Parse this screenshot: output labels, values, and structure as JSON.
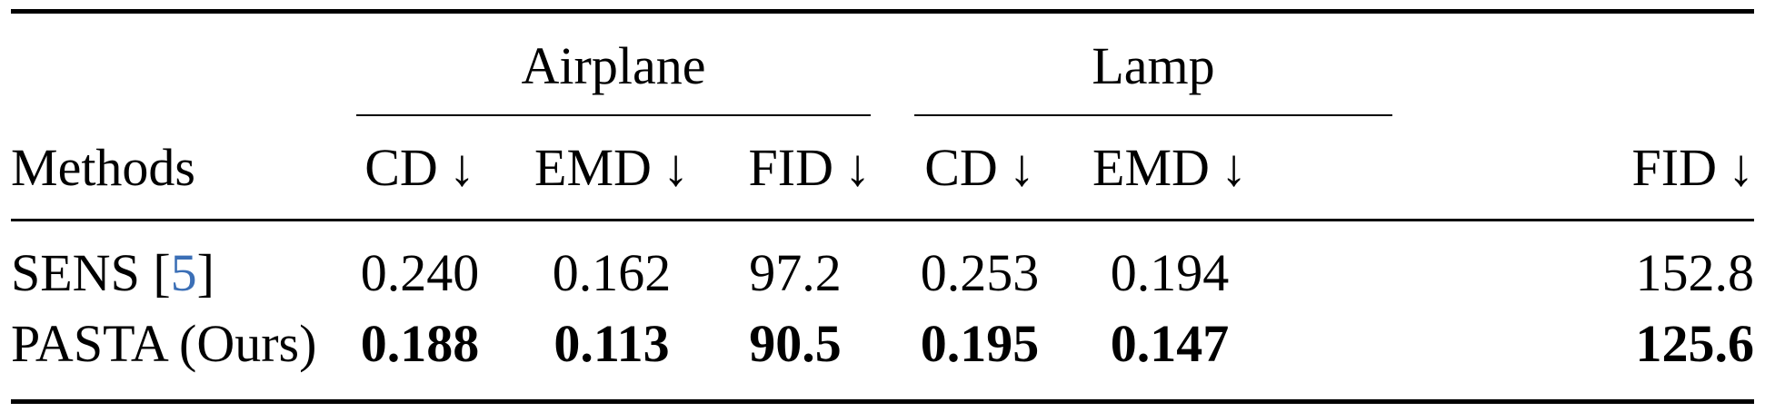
{
  "table": {
    "groups": [
      "Airplane",
      "Lamp"
    ],
    "methods_header": "Methods",
    "metric_headers": [
      "CD",
      "EMD",
      "FID",
      "CD",
      "EMD",
      "FID"
    ],
    "arrow": "↓",
    "rows": [
      {
        "method": "SENS [",
        "cite": "5",
        "method_suffix": "]",
        "values": [
          "0.240",
          "0.162",
          "97.2",
          "0.253",
          "0.194",
          "152.8"
        ],
        "bold": false
      },
      {
        "method": "PASTA (Ours)",
        "values": [
          "0.188",
          "0.113",
          "90.5",
          "0.195",
          "0.147",
          "125.6"
        ],
        "bold": true
      }
    ]
  }
}
